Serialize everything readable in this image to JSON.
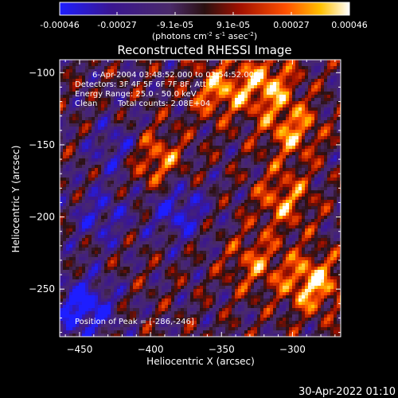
{
  "chart_data": {
    "type": "heatmap",
    "title": "Reconstructed RHESSI Image",
    "xlabel": "Heliocentric X (arcsec)",
    "ylabel": "Heliocentric Y (arcsec)",
    "xlim": [
      -464,
      -266
    ],
    "ylim": [
      -283,
      -91
    ],
    "x_ticks": [
      "-450",
      "-400",
      "-350",
      "-300"
    ],
    "y_ticks": [
      "-100",
      "-150",
      "-200",
      "-250"
    ],
    "colorbar": {
      "ticks": [
        "-0.00046",
        "-0.00027",
        "-9.1e-05",
        "9.1e-05",
        "0.00027",
        "0.00046"
      ],
      "range": [
        -0.00046,
        0.00046
      ],
      "units_parts": [
        "(photons cm",
        "-2",
        " s",
        "-1",
        " asec",
        "-2",
        ")"
      ],
      "colors": [
        "#1e1eff",
        "#3a1690",
        "#4a2a6a",
        "#2a1010",
        "#a01000",
        "#ff5000",
        "#ffc000",
        "#ffffff"
      ]
    },
    "annotations": {
      "time": "6-Apr-2004 03:48:52.000 to 03:54:52.000",
      "detectors": "Detectors: 3F 4F 5F 6F 7F 8F, Att 0",
      "energy": "Energy Range: 25.0 - 50.0 keV",
      "method": "Clean",
      "counts": "Total counts: 2.08E+04",
      "peak": "Position of Peak = [-286,-246]"
    },
    "peak": [
      -286,
      -246
    ],
    "bright_regions": [
      {
        "x": -398,
        "y": -160,
        "level": 0.8
      },
      {
        "x": -352,
        "y": -112,
        "level": 0.75
      },
      {
        "x": -318,
        "y": -108,
        "level": 0.85
      },
      {
        "x": -306,
        "y": -188,
        "level": 0.7
      },
      {
        "x": -326,
        "y": -232,
        "level": 0.6
      },
      {
        "x": -286,
        "y": -246,
        "level": 1.0
      },
      {
        "x": -300,
        "y": -140,
        "level": 0.75
      }
    ],
    "dark_regions": [
      {
        "x": -447,
        "y": -263,
        "level": -1.0
      },
      {
        "x": -380,
        "y": -196,
        "level": -0.7
      },
      {
        "x": -422,
        "y": -153,
        "level": -0.6
      },
      {
        "x": -435,
        "y": -200,
        "level": -0.55
      }
    ]
  },
  "footer": {
    "timestamp": "30-Apr-2022 01:10"
  }
}
